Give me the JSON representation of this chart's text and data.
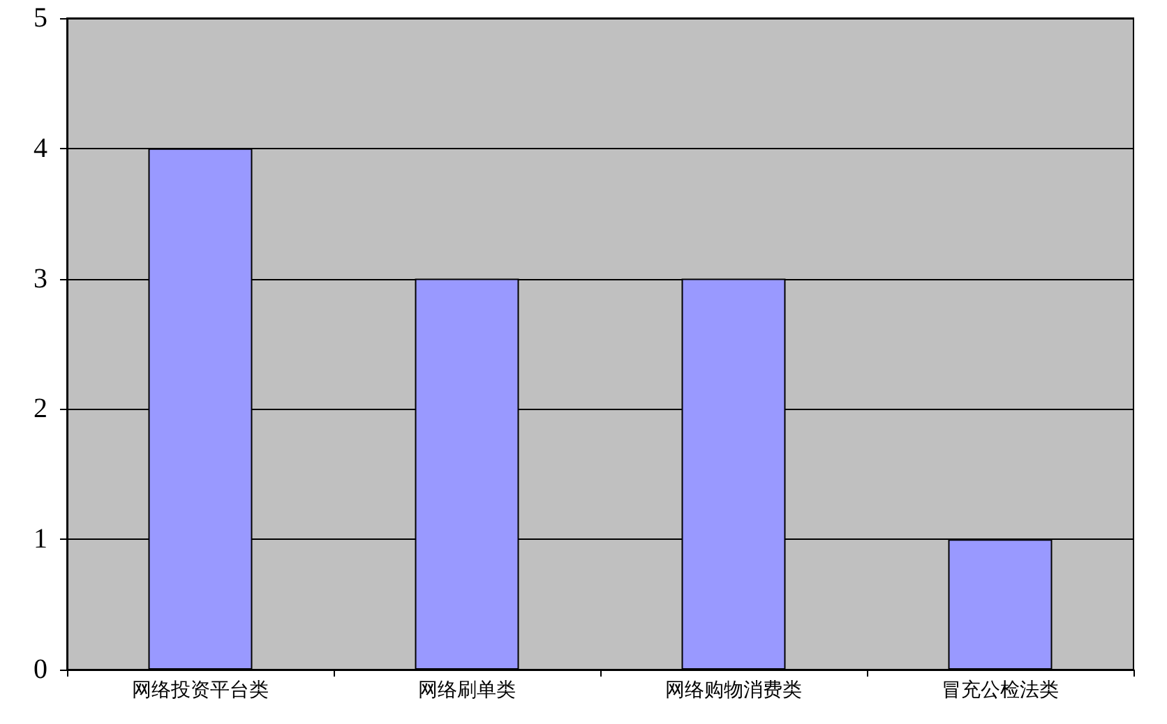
{
  "chart_data": {
    "type": "bar",
    "categories": [
      "网络投资平台类",
      "网络刷单类",
      "网络购物消费类",
      "冒充公检法类"
    ],
    "values": [
      4,
      3,
      3,
      1
    ],
    "color": "#9999ff",
    "ylim": [
      0,
      5
    ],
    "yticks": [
      0,
      1,
      2,
      3,
      4,
      5
    ],
    "grid": "y"
  }
}
